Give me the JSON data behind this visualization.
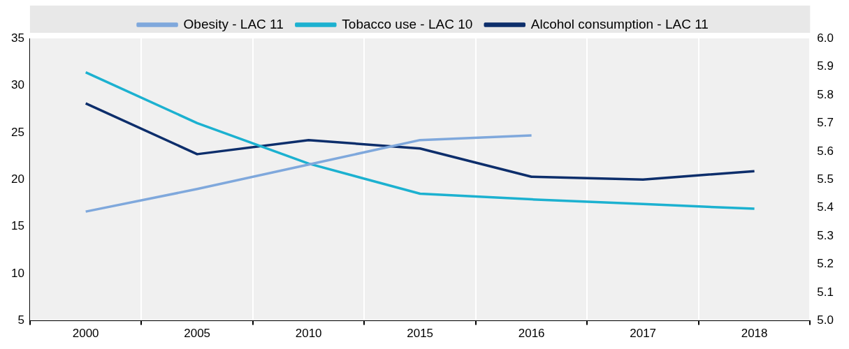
{
  "chart_data": {
    "type": "line",
    "categories": [
      "2000",
      "2005",
      "2010",
      "2015",
      "2016",
      "2017",
      "2018"
    ],
    "series": [
      {
        "name": "Obesity - LAC 11",
        "color": "#7fa8dc",
        "values": [
          16.6,
          19.0,
          21.6,
          24.2,
          24.7,
          null,
          null
        ]
      },
      {
        "name": "Tobacco use - LAC 10",
        "color": "#1cb1d0",
        "values": [
          31.4,
          26.0,
          21.7,
          18.5,
          17.9,
          17.4,
          16.9
        ]
      },
      {
        "name": "Alcohol consumption - LAC 11",
        "color": "#0d2e6b",
        "axis": "y2",
        "values": [
          5.77,
          5.59,
          5.64,
          5.61,
          5.51,
          5.5,
          5.53
        ]
      }
    ],
    "ylim": [
      5,
      35
    ],
    "yticks": [
      5,
      10,
      15,
      20,
      25,
      30,
      35
    ],
    "y2lim": [
      5.0,
      6.0
    ],
    "y2ticks": [
      {
        "value": 5.0,
        "label": "5.0"
      },
      5.1,
      5.2,
      5.3,
      5.4,
      5.5,
      5.6,
      5.7,
      5.8,
      5.9,
      {
        "value": 6.0,
        "label": "6.0"
      }
    ],
    "grid": "x",
    "legend": "top",
    "marker": "none",
    "line_style": "solid"
  }
}
